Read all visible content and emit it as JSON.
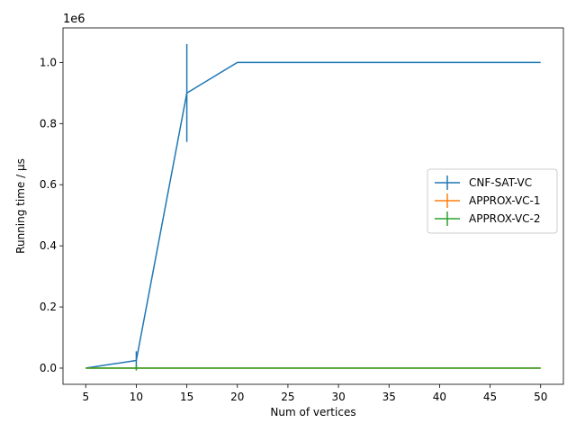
{
  "chart_data": {
    "type": "line",
    "title": "",
    "xlabel": "Num of vertices",
    "ylabel": "Running time / μs",
    "y_scale_label": "1e6",
    "x_ticks": [
      5,
      10,
      15,
      20,
      25,
      30,
      35,
      40,
      45,
      50
    ],
    "x_tick_labels": [
      "5",
      "10",
      "15",
      "20",
      "25",
      "30",
      "35",
      "40",
      "45",
      "50"
    ],
    "y_ticks": [
      0,
      0.2,
      0.4,
      0.6,
      0.8,
      1.0
    ],
    "y_tick_labels": [
      "0.0",
      "0.2",
      "0.4",
      "0.6",
      "0.8",
      "1.0"
    ],
    "xlim": [
      2.75,
      52.25
    ],
    "ylim": [
      -0.053,
      1.113
    ],
    "grid": false,
    "legend_position": "center-right",
    "series": [
      {
        "name": "CNF-SAT-VC",
        "color": "#1f77b4",
        "x": [
          5,
          10,
          15,
          20,
          50
        ],
        "y": [
          0.0,
          0.025,
          0.9,
          1.0,
          1.0
        ],
        "yerr": [
          0.0,
          0.03,
          0.16,
          0.0,
          0.0
        ]
      },
      {
        "name": "APPROX-VC-1",
        "color": "#ff7f0e",
        "x": [
          5,
          10,
          15,
          20,
          50
        ],
        "y": [
          0.0,
          0.0,
          0.0,
          0.0,
          0.0
        ],
        "yerr": [
          0.0,
          0.0,
          0.0,
          0.0,
          0.0
        ]
      },
      {
        "name": "APPROX-VC-2",
        "color": "#2ca02c",
        "x": [
          5,
          10,
          15,
          20,
          50
        ],
        "y": [
          0.0,
          0.0,
          0.0,
          0.0,
          0.0
        ],
        "yerr": [
          0.0,
          0.008,
          0.0,
          0.0,
          0.0
        ]
      }
    ]
  }
}
